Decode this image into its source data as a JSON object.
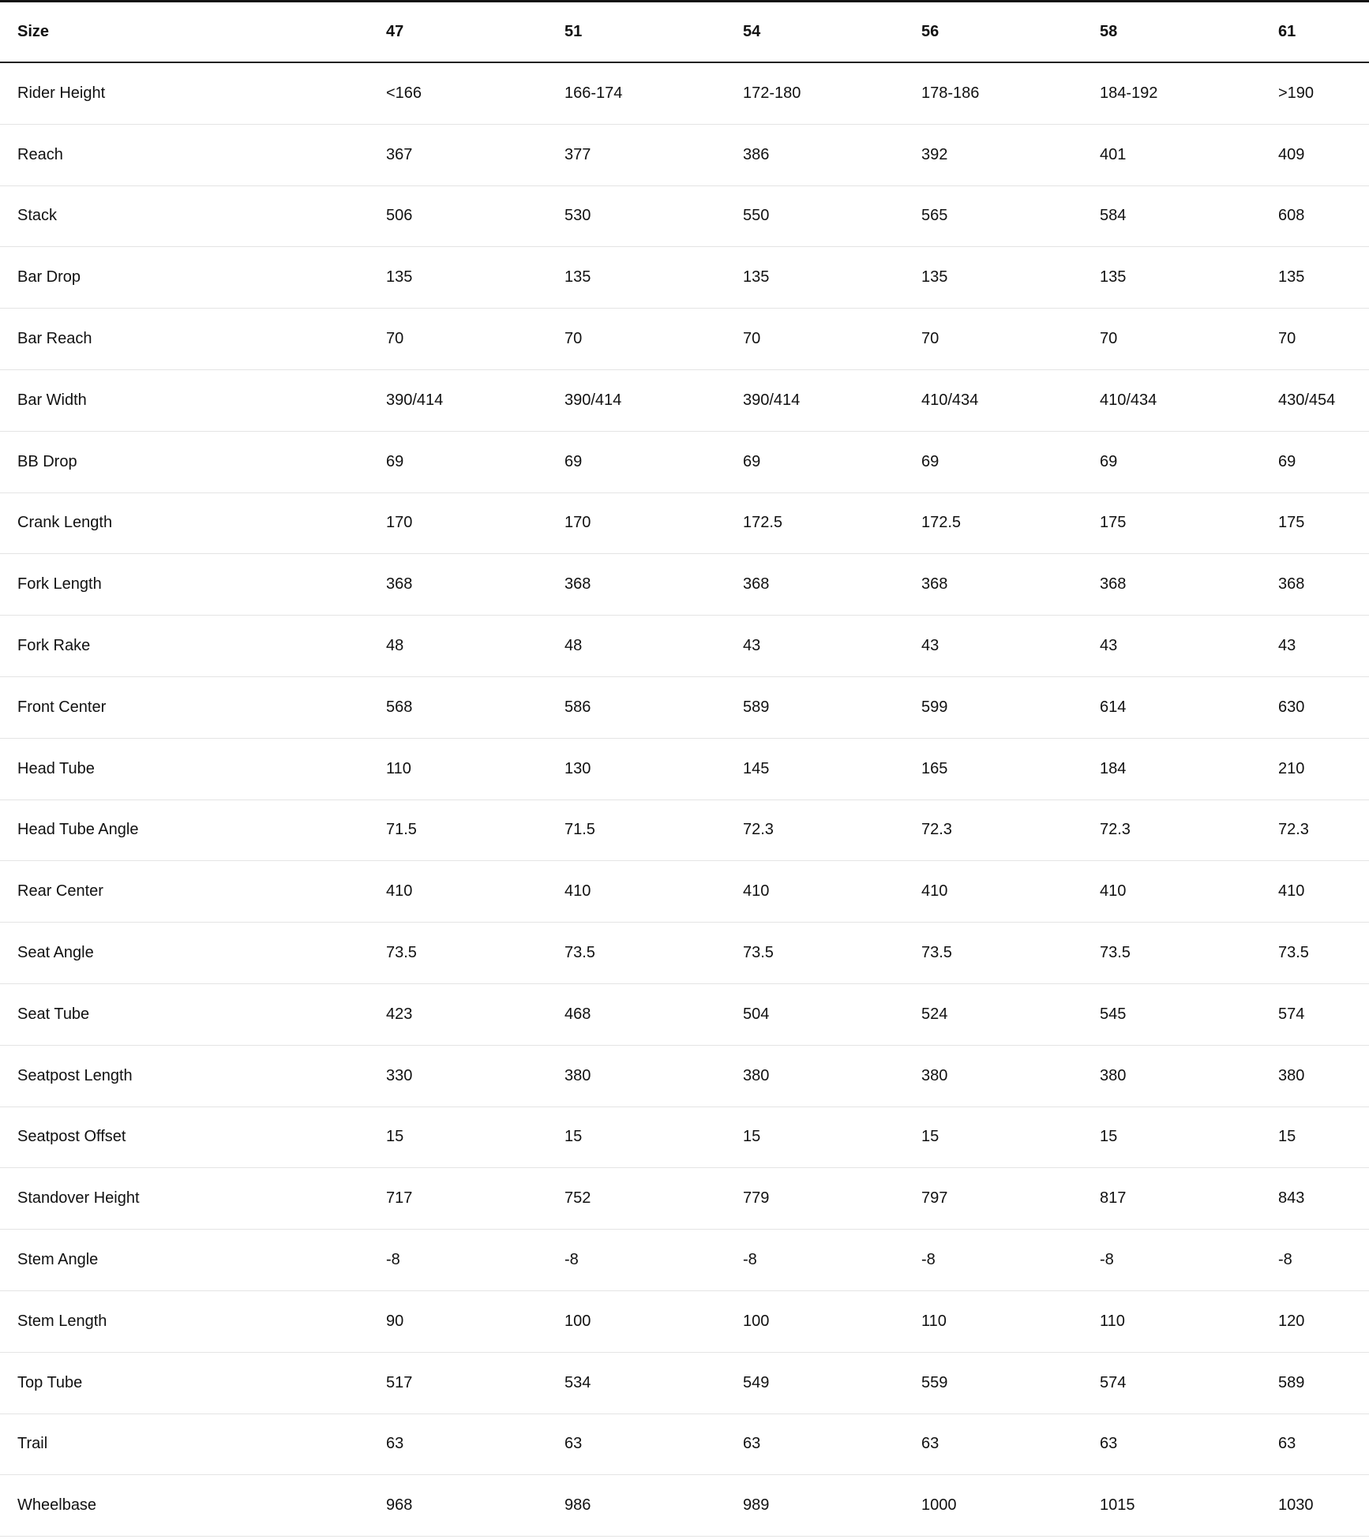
{
  "table": {
    "header": [
      "Size",
      "47",
      "51",
      "54",
      "56",
      "58",
      "61"
    ],
    "rows": [
      [
        "Rider Height",
        "<166",
        "166-174",
        "172-180",
        "178-186",
        "184-192",
        ">190"
      ],
      [
        "Reach",
        "367",
        "377",
        "386",
        "392",
        "401",
        "409"
      ],
      [
        "Stack",
        "506",
        "530",
        "550",
        "565",
        "584",
        "608"
      ],
      [
        "Bar Drop",
        "135",
        "135",
        "135",
        "135",
        "135",
        "135"
      ],
      [
        "Bar Reach",
        "70",
        "70",
        "70",
        "70",
        "70",
        "70"
      ],
      [
        "Bar Width",
        "390/414",
        "390/414",
        "390/414",
        "410/434",
        "410/434",
        "430/454"
      ],
      [
        "BB Drop",
        "69",
        "69",
        "69",
        "69",
        "69",
        "69"
      ],
      [
        "Crank Length",
        "170",
        "170",
        "172.5",
        "172.5",
        "175",
        "175"
      ],
      [
        "Fork Length",
        "368",
        "368",
        "368",
        "368",
        "368",
        "368"
      ],
      [
        "Fork Rake",
        "48",
        "48",
        "43",
        "43",
        "43",
        "43"
      ],
      [
        "Front Center",
        "568",
        "586",
        "589",
        "599",
        "614",
        "630"
      ],
      [
        "Head Tube",
        "110",
        "130",
        "145",
        "165",
        "184",
        "210"
      ],
      [
        "Head Tube Angle",
        "71.5",
        "71.5",
        "72.3",
        "72.3",
        "72.3",
        "72.3"
      ],
      [
        "Rear Center",
        "410",
        "410",
        "410",
        "410",
        "410",
        "410"
      ],
      [
        "Seat Angle",
        "73.5",
        "73.5",
        "73.5",
        "73.5",
        "73.5",
        "73.5"
      ],
      [
        "Seat Tube",
        "423",
        "468",
        "504",
        "524",
        "545",
        "574"
      ],
      [
        "Seatpost Length",
        "330",
        "380",
        "380",
        "380",
        "380",
        "380"
      ],
      [
        "Seatpost Offset",
        "15",
        "15",
        "15",
        "15",
        "15",
        "15"
      ],
      [
        "Standover Height",
        "717",
        "752",
        "779",
        "797",
        "817",
        "843"
      ],
      [
        "Stem Angle",
        "-8",
        "-8",
        "-8",
        "-8",
        "-8",
        "-8"
      ],
      [
        "Stem Length",
        "90",
        "100",
        "100",
        "110",
        "110",
        "120"
      ],
      [
        "Top Tube",
        "517",
        "534",
        "549",
        "559",
        "574",
        "589"
      ],
      [
        "Trail",
        "63",
        "63",
        "63",
        "63",
        "63",
        "63"
      ],
      [
        "Wheelbase",
        "968",
        "986",
        "989",
        "1000",
        "1015",
        "1030"
      ]
    ]
  }
}
